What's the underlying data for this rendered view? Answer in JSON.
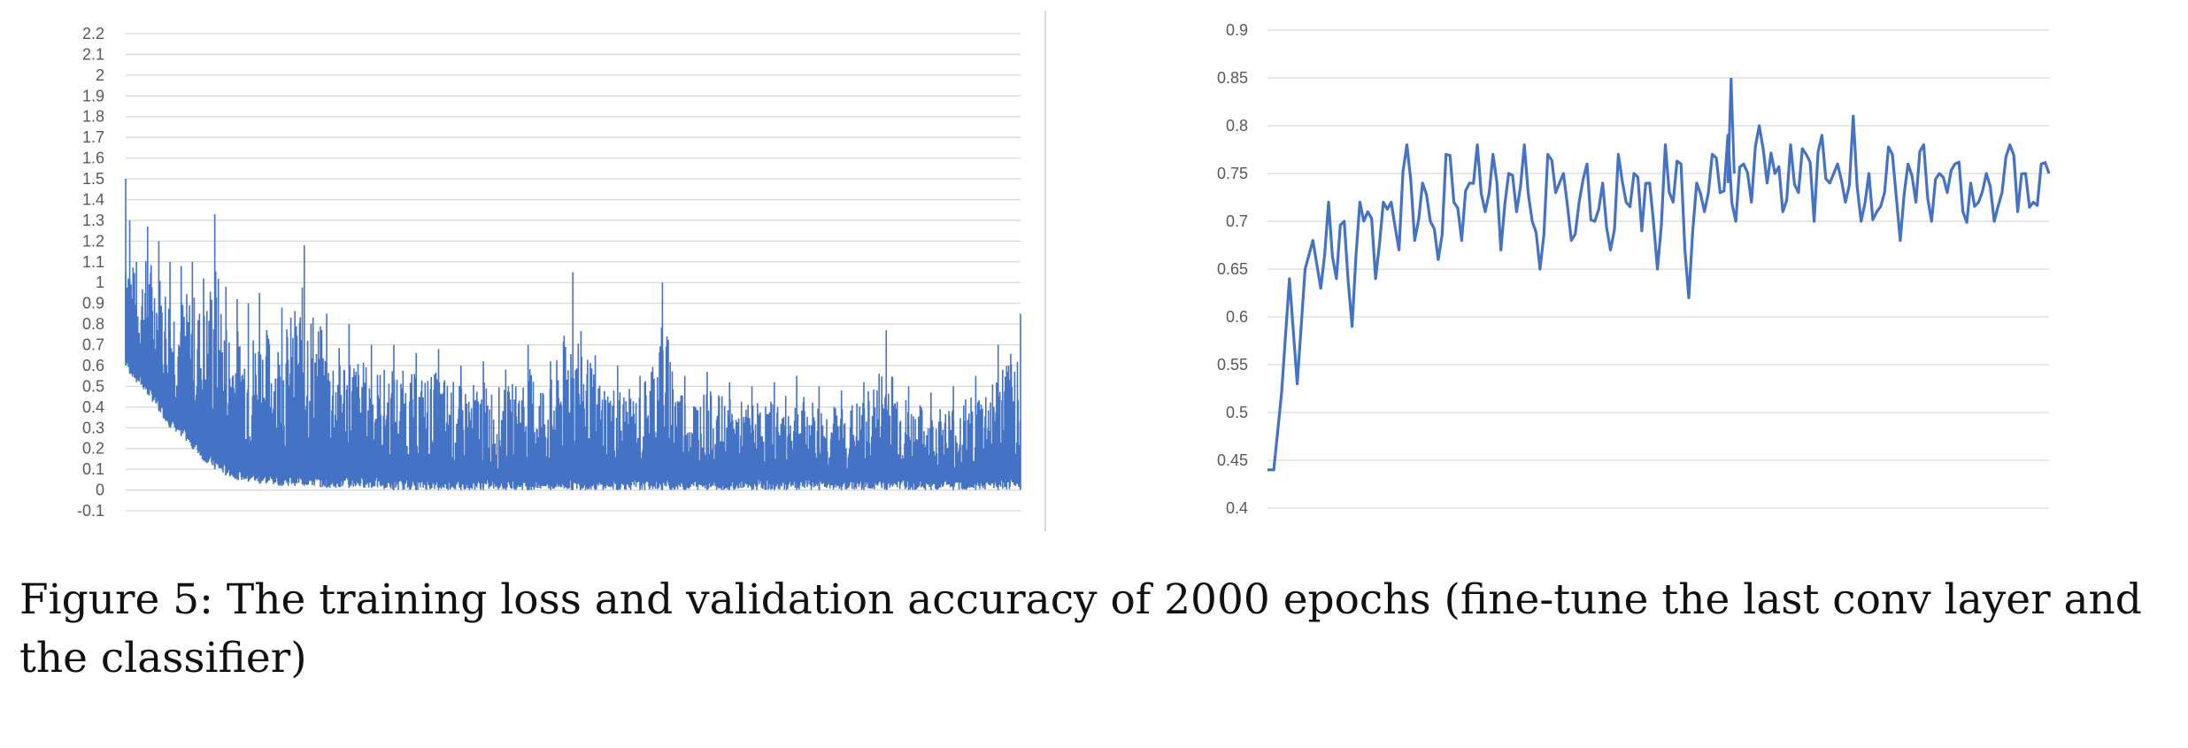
{
  "figure": {
    "caption": "Figure 5: The training loss and validation accuracy of 2000 epochs (fine-tune the last conv layer and the classifier)"
  },
  "colors": {
    "series": "#4472C4",
    "grid": "#d9d9d9",
    "tick": "#595959",
    "divider": "#d0d0d0"
  },
  "chart_data": [
    {
      "type": "line",
      "title": "",
      "xlabel": "",
      "ylabel": "",
      "ylim": [
        -0.1,
        2.2
      ],
      "yticks": [
        -0.1,
        0,
        0.1,
        0.2,
        0.3,
        0.4,
        0.5,
        0.6,
        0.7,
        0.8,
        0.9,
        1,
        1.1,
        1.2,
        1.3,
        1.4,
        1.5,
        1.6,
        1.7,
        1.8,
        1.9,
        2,
        2.1,
        2.2
      ],
      "grid": true,
      "legend": "none",
      "series": [
        {
          "x_range": [
            1,
            2000
          ],
          "note_points": "dense noisy loss; values below are sampled every ~10 epochs as [x, y_low, y_high]",
          "values": [
            [
              1,
              0.6,
              1.5
            ],
            [
              10,
              0.56,
              1.3
            ],
            [
              25,
              0.52,
              1.1
            ],
            [
              50,
              0.46,
              1.27
            ],
            [
              75,
              0.38,
              1.2
            ],
            [
              100,
              0.3,
              1.1
            ],
            [
              125,
              0.26,
              1.08
            ],
            [
              150,
              0.2,
              1.1
            ],
            [
              175,
              0.14,
              1.02
            ],
            [
              200,
              0.1,
              1.33
            ],
            [
              225,
              0.07,
              0.98
            ],
            [
              250,
              0.05,
              0.92
            ],
            [
              275,
              0.04,
              0.9
            ],
            [
              300,
              0.03,
              0.95
            ],
            [
              350,
              0.02,
              0.88
            ],
            [
              400,
              0.02,
              1.18
            ],
            [
              450,
              0.01,
              0.85
            ],
            [
              500,
              0.01,
              0.8
            ],
            [
              550,
              0.01,
              0.7
            ],
            [
              600,
              0.0,
              0.7
            ],
            [
              650,
              0.0,
              0.66
            ],
            [
              700,
              0.0,
              0.68
            ],
            [
              750,
              0.0,
              0.6
            ],
            [
              800,
              0.0,
              0.62
            ],
            [
              850,
              0.0,
              0.58
            ],
            [
              900,
              0.0,
              0.7
            ],
            [
              950,
              0.0,
              0.62
            ],
            [
              1000,
              0.0,
              1.05
            ],
            [
              1050,
              0.0,
              0.65
            ],
            [
              1100,
              0.0,
              0.6
            ],
            [
              1150,
              0.0,
              0.55
            ],
            [
              1200,
              0.0,
              1.0
            ],
            [
              1250,
              0.0,
              0.55
            ],
            [
              1300,
              0.0,
              0.57
            ],
            [
              1350,
              0.0,
              0.52
            ],
            [
              1400,
              0.0,
              0.5
            ],
            [
              1450,
              0.0,
              0.52
            ],
            [
              1500,
              0.0,
              0.55
            ],
            [
              1550,
              0.0,
              0.5
            ],
            [
              1600,
              0.0,
              0.48
            ],
            [
              1650,
              0.0,
              0.52
            ],
            [
              1700,
              0.0,
              0.77
            ],
            [
              1750,
              0.0,
              0.5
            ],
            [
              1800,
              0.0,
              0.47
            ],
            [
              1850,
              0.0,
              0.5
            ],
            [
              1900,
              0.0,
              0.55
            ],
            [
              1950,
              0.0,
              0.7
            ],
            [
              2000,
              0.0,
              0.85
            ]
          ]
        }
      ]
    },
    {
      "type": "line",
      "title": "",
      "xlabel": "",
      "ylabel": "",
      "ylim": [
        0.4,
        0.9
      ],
      "yticks": [
        0.4,
        0.45,
        0.5,
        0.55,
        0.6,
        0.65,
        0.7,
        0.75,
        0.8,
        0.85,
        0.9
      ],
      "grid": true,
      "legend": "none",
      "series": [
        {
          "x": [
            1,
            5,
            10,
            15,
            20,
            25,
            30,
            35,
            40,
            45,
            50,
            55,
            60,
            65,
            70,
            75,
            80,
            85,
            90,
            95,
            100,
            105,
            110,
            115,
            120,
            125,
            130,
            135,
            140,
            145,
            150,
            155,
            160,
            165,
            170,
            175,
            180,
            185,
            190,
            195,
            200,
            205,
            210,
            215,
            220,
            225,
            230,
            235,
            240,
            245,
            250,
            255,
            260,
            265,
            270,
            275,
            280,
            285,
            290,
            295,
            300,
            305,
            310,
            315,
            320,
            325,
            330,
            335,
            340,
            345,
            350,
            355,
            360,
            365,
            370,
            375,
            380,
            385,
            390,
            395,
            400,
            405,
            410,
            415,
            420,
            425,
            430,
            435,
            440,
            445,
            450,
            455,
            460,
            465,
            470,
            475,
            480,
            485,
            490,
            495,
            500
          ],
          "values": [
            0.44,
            0.44,
            0.52,
            0.64,
            0.53,
            0.65,
            0.68,
            0.63,
            0.72,
            0.64,
            0.7,
            0.59,
            0.72,
            0.71,
            0.64,
            0.72,
            0.72,
            0.67,
            0.78,
            0.68,
            0.74,
            0.7,
            0.66,
            0.77,
            0.72,
            0.68,
            0.74,
            0.78,
            0.71,
            0.77,
            0.67,
            0.75,
            0.71,
            0.78,
            0.7,
            0.65,
            0.77,
            0.73,
            0.75,
            0.68,
            0.72,
            0.76,
            0.7,
            0.74,
            0.67,
            0.77,
            0.72,
            0.75,
            0.69,
            0.74,
            0.65,
            0.78,
            0.72,
            0.76,
            0.62,
            0.74,
            0.71,
            0.77,
            0.73,
            0.79,
            0.7,
            0.76,
            0.72,
            0.8,
            0.74,
            0.75,
            0.71,
            0.78,
            0.73,
            0.77,
            0.7,
            0.79,
            0.74,
            0.76,
            0.72,
            0.81,
            0.7,
            0.75,
            0.71,
            0.73,
            0.77,
            0.68,
            0.76,
            0.72,
            0.78,
            0.7,
            0.75,
            0.73,
            0.76,
            0.71,
            0.74,
            0.72,
            0.75,
            0.7,
            0.73,
            0.78,
            0.71,
            0.75,
            0.72,
            0.76,
            0.75
          ]
        }
      ]
    }
  ]
}
